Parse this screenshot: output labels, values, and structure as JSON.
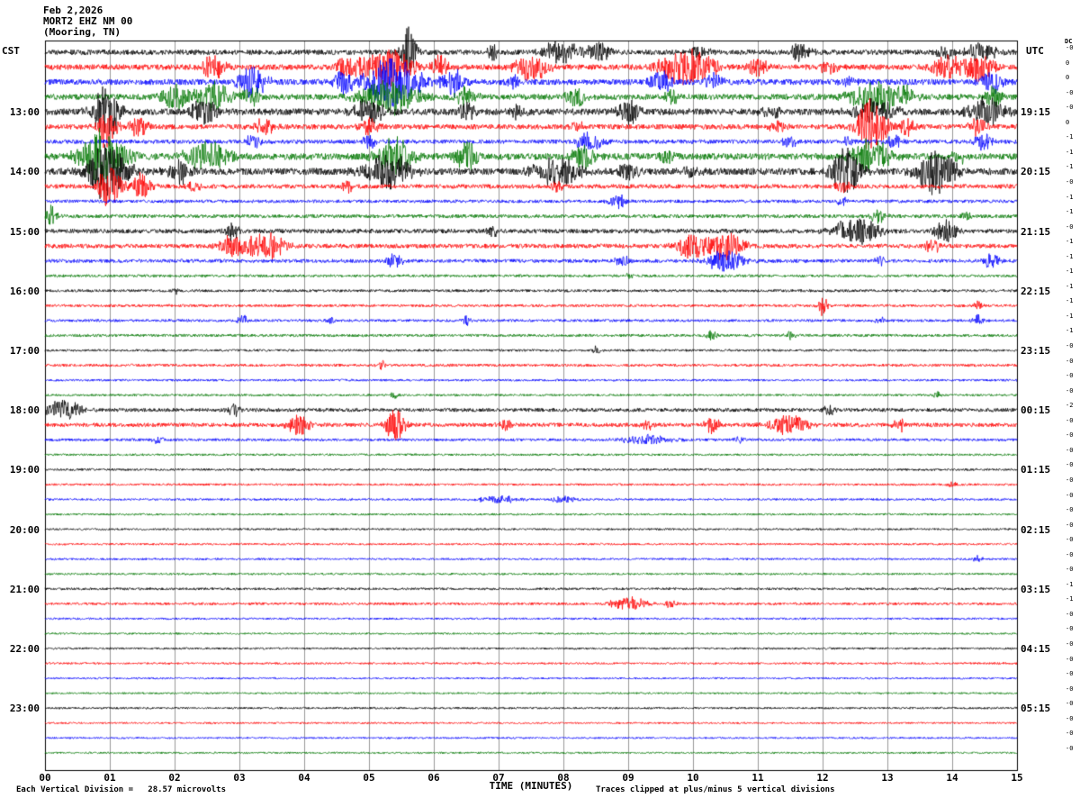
{
  "header": {
    "date": "Feb 2,2026",
    "station": "MORT2 EHZ NM 00",
    "location": "(Mooring, TN)"
  },
  "axes": {
    "left_timezone": "CST",
    "right_timezone": "UTC",
    "dc_label": "DC",
    "x_ticks": [
      "00",
      "01",
      "02",
      "03",
      "04",
      "05",
      "06",
      "07",
      "08",
      "09",
      "10",
      "11",
      "12",
      "13",
      "14",
      "15"
    ]
  },
  "footer": {
    "left": "Each Vertical Division =   28.57 microvolts",
    "x_title": "TIME (MINUTES)",
    "right": "Traces clipped at plus/minus 5 vertical divisions"
  },
  "chart_data": {
    "type": "line",
    "title": "MORT2 EHZ NM 00 (Mooring, TN) helicorder, Feb 2,2026",
    "xlabel": "TIME (MINUTES)",
    "x_range_minutes": [
      0,
      15
    ],
    "minutes_per_row": 15,
    "grid": true,
    "style": {
      "colors": {
        "black": "#000000",
        "red": "#ff0000",
        "blue": "#0000ff",
        "green": "#007700"
      },
      "grid_color": "#999999",
      "border_color": "#000000"
    },
    "rows": [
      {
        "cst": "",
        "utc": "",
        "color": "black",
        "dc": "-0",
        "noise": 2.8,
        "bursts": [
          [
            5.6,
            0.08,
            30
          ],
          [
            6.9,
            0.06,
            10
          ],
          [
            7.95,
            0.2,
            13
          ],
          [
            8.55,
            0.12,
            11
          ],
          [
            10.1,
            0.1,
            7
          ],
          [
            11.65,
            0.12,
            10
          ],
          [
            13.9,
            0.1,
            7
          ],
          [
            14.45,
            0.15,
            12
          ]
        ]
      },
      {
        "cst": "",
        "utc": "",
        "color": "red",
        "dc": "0",
        "noise": 3.0,
        "bursts": [
          [
            2.6,
            0.12,
            14
          ],
          [
            4.7,
            0.15,
            12
          ],
          [
            5.3,
            0.25,
            22
          ],
          [
            6.1,
            0.1,
            12
          ],
          [
            7.5,
            0.18,
            16
          ],
          [
            9.9,
            0.3,
            20
          ],
          [
            11.0,
            0.1,
            10
          ],
          [
            12.1,
            0.1,
            8
          ],
          [
            13.9,
            0.15,
            12
          ],
          [
            14.4,
            0.2,
            14
          ]
        ]
      },
      {
        "cst": "",
        "utc": "",
        "color": "blue",
        "dc": "0",
        "noise": 3.2,
        "bursts": [
          [
            3.2,
            0.15,
            18
          ],
          [
            4.6,
            0.1,
            12
          ],
          [
            5.35,
            0.3,
            30
          ],
          [
            6.3,
            0.12,
            16
          ],
          [
            7.2,
            0.1,
            8
          ],
          [
            9.5,
            0.12,
            13
          ],
          [
            10.3,
            0.1,
            10
          ],
          [
            12.4,
            0.08,
            6
          ],
          [
            14.6,
            0.12,
            12
          ]
        ]
      },
      {
        "cst": "",
        "utc": "",
        "color": "green",
        "dc": "-0",
        "noise": 3.2,
        "bursts": [
          [
            2.0,
            0.15,
            13
          ],
          [
            2.6,
            0.2,
            16
          ],
          [
            3.2,
            0.1,
            10
          ],
          [
            5.3,
            0.3,
            20
          ],
          [
            6.5,
            0.12,
            12
          ],
          [
            8.2,
            0.1,
            11
          ],
          [
            9.65,
            0.08,
            9
          ],
          [
            12.8,
            0.25,
            18
          ],
          [
            13.3,
            0.1,
            10
          ],
          [
            14.65,
            0.1,
            12
          ]
        ]
      },
      {
        "cst": "13:00",
        "utc": "19:15",
        "color": "black",
        "dc": "-0",
        "noise": 3.6,
        "bursts": [
          [
            0.95,
            0.15,
            30
          ],
          [
            2.45,
            0.15,
            13
          ],
          [
            5.0,
            0.15,
            15
          ],
          [
            6.5,
            0.1,
            11
          ],
          [
            7.3,
            0.1,
            8
          ],
          [
            9.0,
            0.12,
            13
          ],
          [
            11.2,
            0.1,
            9
          ],
          [
            12.8,
            0.25,
            12
          ],
          [
            14.55,
            0.2,
            15
          ]
        ]
      },
      {
        "cst": "",
        "utc": "",
        "color": "red",
        "dc": "0",
        "noise": 2.8,
        "bursts": [
          [
            0.95,
            0.1,
            24
          ],
          [
            1.45,
            0.1,
            12
          ],
          [
            3.4,
            0.1,
            11
          ],
          [
            5.0,
            0.1,
            9
          ],
          [
            8.2,
            0.08,
            7
          ],
          [
            11.3,
            0.08,
            7
          ],
          [
            12.75,
            0.15,
            34
          ],
          [
            13.3,
            0.08,
            10
          ],
          [
            14.4,
            0.1,
            9
          ]
        ]
      },
      {
        "cst": "",
        "utc": "",
        "color": "blue",
        "dc": "-1",
        "noise": 2.3,
        "bursts": [
          [
            3.2,
            0.08,
            8
          ],
          [
            5.0,
            0.08,
            7
          ],
          [
            8.4,
            0.15,
            10
          ],
          [
            11.5,
            0.08,
            7
          ],
          [
            12.4,
            0.06,
            6
          ],
          [
            13.1,
            0.08,
            8
          ],
          [
            14.5,
            0.1,
            10
          ]
        ]
      },
      {
        "cst": "",
        "utc": "",
        "color": "green",
        "dc": "-1",
        "noise": 3.6,
        "bursts": [
          [
            0.9,
            0.25,
            30
          ],
          [
            2.5,
            0.25,
            17
          ],
          [
            5.4,
            0.2,
            21
          ],
          [
            6.5,
            0.12,
            17
          ],
          [
            8.3,
            0.12,
            13
          ],
          [
            9.6,
            0.08,
            8
          ],
          [
            12.75,
            0.2,
            19
          ],
          [
            14.1,
            0.08,
            7
          ]
        ]
      },
      {
        "cst": "14:00",
        "utc": "20:15",
        "color": "black",
        "dc": "-1",
        "noise": 3.8,
        "bursts": [
          [
            0.95,
            0.22,
            33
          ],
          [
            2.05,
            0.12,
            15
          ],
          [
            5.3,
            0.25,
            19
          ],
          [
            7.9,
            0.25,
            15
          ],
          [
            9.0,
            0.1,
            11
          ],
          [
            10.0,
            0.1,
            7
          ],
          [
            12.35,
            0.15,
            27
          ],
          [
            13.75,
            0.2,
            25
          ]
        ]
      },
      {
        "cst": "",
        "utc": "",
        "color": "red",
        "dc": "-0",
        "noise": 2.4,
        "bursts": [
          [
            1.0,
            0.12,
            25
          ],
          [
            1.5,
            0.1,
            16
          ],
          [
            2.3,
            0.08,
            7
          ],
          [
            4.65,
            0.08,
            9
          ],
          [
            7.9,
            0.06,
            6
          ],
          [
            12.3,
            0.08,
            8
          ]
        ]
      },
      {
        "cst": "",
        "utc": "",
        "color": "blue",
        "dc": "-1",
        "noise": 1.8,
        "bursts": [
          [
            8.85,
            0.1,
            8
          ],
          [
            12.3,
            0.06,
            5
          ]
        ]
      },
      {
        "cst": "",
        "utc": "",
        "color": "green",
        "dc": "-1",
        "noise": 2.0,
        "bursts": [
          [
            0.1,
            0.06,
            12
          ],
          [
            12.85,
            0.08,
            9
          ],
          [
            14.2,
            0.06,
            6
          ]
        ]
      },
      {
        "cst": "15:00",
        "utc": "21:15",
        "color": "black",
        "dc": "-0",
        "noise": 2.4,
        "bursts": [
          [
            2.9,
            0.08,
            10
          ],
          [
            6.9,
            0.06,
            7
          ],
          [
            12.5,
            0.25,
            15
          ],
          [
            13.9,
            0.12,
            13
          ]
        ]
      },
      {
        "cst": "",
        "utc": "",
        "color": "red",
        "dc": "-1",
        "noise": 2.4,
        "bursts": [
          [
            2.9,
            0.15,
            12
          ],
          [
            3.4,
            0.2,
            16
          ],
          [
            9.95,
            0.15,
            14
          ],
          [
            10.5,
            0.2,
            16
          ],
          [
            13.7,
            0.08,
            9
          ]
        ]
      },
      {
        "cst": "",
        "utc": "",
        "color": "blue",
        "dc": "-1",
        "noise": 2.0,
        "bursts": [
          [
            5.4,
            0.08,
            9
          ],
          [
            8.9,
            0.08,
            7
          ],
          [
            10.5,
            0.2,
            13
          ],
          [
            12.9,
            0.06,
            5
          ],
          [
            14.6,
            0.08,
            9
          ]
        ]
      },
      {
        "cst": "",
        "utc": "",
        "color": "green",
        "dc": "-1",
        "noise": 1.5,
        "bursts": [
          [
            9.0,
            0.06,
            4
          ]
        ]
      },
      {
        "cst": "16:00",
        "utc": "22:15",
        "color": "black",
        "dc": "-1",
        "noise": 1.5,
        "bursts": [
          [
            2.0,
            0.05,
            4
          ]
        ]
      },
      {
        "cst": "",
        "utc": "",
        "color": "red",
        "dc": "-1",
        "noise": 1.5,
        "bursts": [
          [
            12.0,
            0.05,
            12
          ],
          [
            14.4,
            0.05,
            5
          ]
        ]
      },
      {
        "cst": "",
        "utc": "",
        "color": "blue",
        "dc": "-1",
        "noise": 1.5,
        "bursts": [
          [
            3.05,
            0.06,
            6
          ],
          [
            4.4,
            0.05,
            5
          ],
          [
            6.5,
            0.05,
            5
          ],
          [
            12.9,
            0.05,
            5
          ],
          [
            14.4,
            0.06,
            6
          ]
        ]
      },
      {
        "cst": "",
        "utc": "",
        "color": "green",
        "dc": "-1",
        "noise": 1.5,
        "bursts": [
          [
            10.3,
            0.06,
            6
          ],
          [
            11.5,
            0.05,
            5
          ]
        ]
      },
      {
        "cst": "17:00",
        "utc": "23:15",
        "color": "black",
        "dc": "-0",
        "noise": 1.3,
        "bursts": [
          [
            8.5,
            0.05,
            5
          ]
        ]
      },
      {
        "cst": "",
        "utc": "",
        "color": "red",
        "dc": "-0",
        "noise": 1.5,
        "bursts": [
          [
            5.2,
            0.05,
            5
          ]
        ]
      },
      {
        "cst": "",
        "utc": "",
        "color": "blue",
        "dc": "-0",
        "noise": 1.2,
        "bursts": []
      },
      {
        "cst": "",
        "utc": "",
        "color": "green",
        "dc": "-0",
        "noise": 1.2,
        "bursts": [
          [
            5.4,
            0.05,
            4
          ],
          [
            13.75,
            0.05,
            4
          ]
        ]
      },
      {
        "cst": "18:00",
        "utc": "00:15",
        "color": "black",
        "dc": "-2",
        "noise": 2.0,
        "bursts": [
          [
            0.3,
            0.2,
            11
          ],
          [
            2.9,
            0.08,
            8
          ],
          [
            12.1,
            0.06,
            6
          ]
        ]
      },
      {
        "cst": "",
        "utc": "",
        "color": "red",
        "dc": "-0",
        "noise": 2.2,
        "bursts": [
          [
            3.9,
            0.12,
            13
          ],
          [
            5.4,
            0.1,
            20
          ],
          [
            7.1,
            0.06,
            6
          ],
          [
            9.3,
            0.08,
            6
          ],
          [
            10.3,
            0.08,
            10
          ],
          [
            11.5,
            0.2,
            11
          ],
          [
            13.2,
            0.08,
            8
          ]
        ]
      },
      {
        "cst": "",
        "utc": "",
        "color": "blue",
        "dc": "-0",
        "noise": 1.5,
        "bursts": [
          [
            1.75,
            0.05,
            5
          ],
          [
            9.3,
            0.3,
            5
          ],
          [
            10.7,
            0.06,
            5
          ]
        ]
      },
      {
        "cst": "",
        "utc": "",
        "color": "green",
        "dc": "-0",
        "noise": 1.2,
        "bursts": []
      },
      {
        "cst": "19:00",
        "utc": "01:15",
        "color": "black",
        "dc": "-0",
        "noise": 1.2,
        "bursts": []
      },
      {
        "cst": "",
        "utc": "",
        "color": "red",
        "dc": "-0",
        "noise": 1.2,
        "bursts": [
          [
            14.0,
            0.05,
            4
          ]
        ]
      },
      {
        "cst": "",
        "utc": "",
        "color": "blue",
        "dc": "-0",
        "noise": 1.2,
        "bursts": [
          [
            7.0,
            0.25,
            4
          ],
          [
            8.0,
            0.15,
            4
          ]
        ]
      },
      {
        "cst": "",
        "utc": "",
        "color": "green",
        "dc": "-0",
        "noise": 1.1,
        "bursts": []
      },
      {
        "cst": "20:00",
        "utc": "02:15",
        "color": "black",
        "dc": "-0",
        "noise": 1.1,
        "bursts": []
      },
      {
        "cst": "",
        "utc": "",
        "color": "red",
        "dc": "-0",
        "noise": 1.1,
        "bursts": []
      },
      {
        "cst": "",
        "utc": "",
        "color": "blue",
        "dc": "-0",
        "noise": 1.1,
        "bursts": [
          [
            14.4,
            0.05,
            4
          ]
        ]
      },
      {
        "cst": "",
        "utc": "",
        "color": "green",
        "dc": "-0",
        "noise": 1.1,
        "bursts": []
      },
      {
        "cst": "21:00",
        "utc": "03:15",
        "color": "black",
        "dc": "-1",
        "noise": 1.3,
        "bursts": []
      },
      {
        "cst": "",
        "utc": "",
        "color": "red",
        "dc": "-1",
        "noise": 1.4,
        "bursts": [
          [
            9.0,
            0.2,
            8
          ],
          [
            9.65,
            0.06,
            5
          ]
        ]
      },
      {
        "cst": "",
        "utc": "",
        "color": "blue",
        "dc": "-0",
        "noise": 1.1,
        "bursts": []
      },
      {
        "cst": "",
        "utc": "",
        "color": "green",
        "dc": "-0",
        "noise": 1.0,
        "bursts": []
      },
      {
        "cst": "22:00",
        "utc": "04:15",
        "color": "black",
        "dc": "-0",
        "noise": 1.1,
        "bursts": []
      },
      {
        "cst": "",
        "utc": "",
        "color": "red",
        "dc": "-0",
        "noise": 1.1,
        "bursts": []
      },
      {
        "cst": "",
        "utc": "",
        "color": "blue",
        "dc": "-0",
        "noise": 1.0,
        "bursts": []
      },
      {
        "cst": "",
        "utc": "",
        "color": "green",
        "dc": "-0",
        "noise": 1.0,
        "bursts": []
      },
      {
        "cst": "23:00",
        "utc": "05:15",
        "color": "black",
        "dc": "-0",
        "noise": 1.1,
        "bursts": []
      },
      {
        "cst": "",
        "utc": "",
        "color": "red",
        "dc": "-0",
        "noise": 1.0,
        "bursts": []
      },
      {
        "cst": "",
        "utc": "",
        "color": "blue",
        "dc": "-0",
        "noise": 1.0,
        "bursts": []
      },
      {
        "cst": "",
        "utc": "",
        "color": "green",
        "dc": "-0",
        "noise": 1.0,
        "bursts": []
      }
    ]
  }
}
